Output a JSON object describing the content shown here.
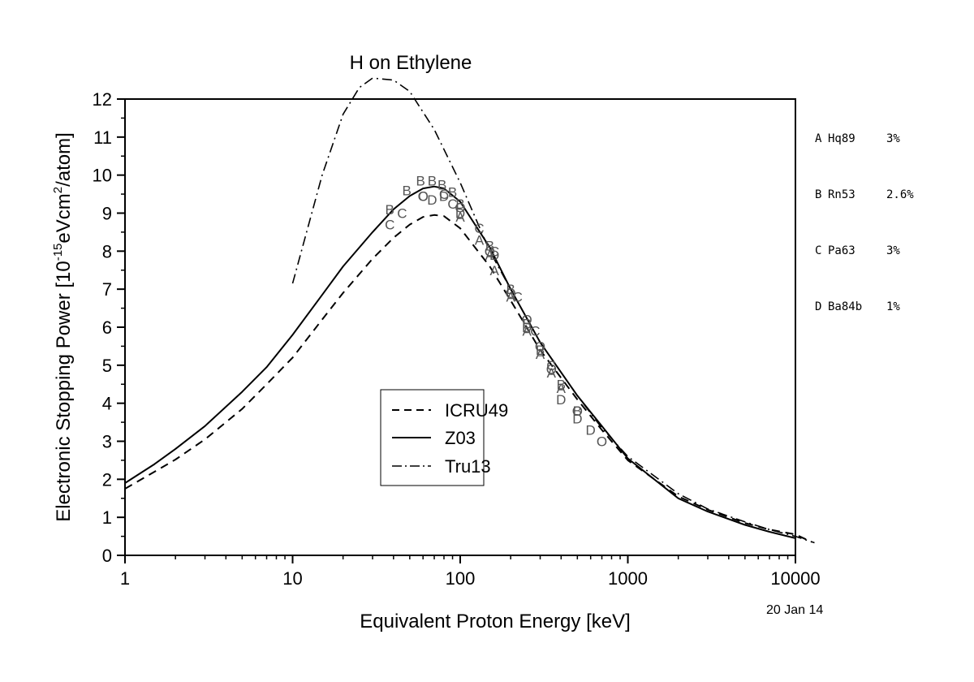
{
  "chart_data": {
    "type": "line",
    "title": "H on Ethylene",
    "xlabel": "Equivalent Proton Energy [keV]",
    "ylabel_main": "Electronic Stopping Power [10",
    "ylabel_sup1": "-15",
    "ylabel_mid": "eVcm",
    "ylabel_sup2": "2",
    "ylabel_end": "/atom]",
    "x_scale": "log",
    "xlim": [
      1,
      10000
    ],
    "ylim": [
      0,
      12
    ],
    "x_ticks": [
      "1",
      "10",
      "100",
      "1000",
      "10000"
    ],
    "y_ticks": [
      "0",
      "1",
      "2",
      "3",
      "4",
      "5",
      "6",
      "7",
      "8",
      "9",
      "10",
      "11",
      "12"
    ],
    "grid": false,
    "legend_position": "center",
    "series": [
      {
        "name": "ICRU49",
        "style": "dashed",
        "x": [
          1,
          1.5,
          2,
          3,
          5,
          7,
          10,
          15,
          20,
          30,
          40,
          50,
          60,
          70,
          80,
          100,
          150,
          200,
          300,
          500,
          700,
          1000,
          2000,
          3000,
          5000,
          7000,
          10000,
          12500
        ],
        "y": [
          1.75,
          2.2,
          2.52,
          3.05,
          3.85,
          4.5,
          5.2,
          6.2,
          6.9,
          7.8,
          8.35,
          8.7,
          8.9,
          8.95,
          8.92,
          8.6,
          7.6,
          6.7,
          5.4,
          4.1,
          3.3,
          2.5,
          1.55,
          1.2,
          0.85,
          0.68,
          0.55,
          0.35
        ]
      },
      {
        "name": "Z03",
        "style": "solid",
        "x": [
          1,
          1.5,
          2,
          3,
          5,
          7,
          10,
          15,
          20,
          30,
          40,
          50,
          60,
          70,
          80,
          100,
          150,
          200,
          300,
          500,
          700,
          1000,
          2000,
          3000,
          5000,
          7000,
          10000
        ],
        "y": [
          1.9,
          2.4,
          2.8,
          3.4,
          4.3,
          4.95,
          5.8,
          6.85,
          7.6,
          8.5,
          9.1,
          9.45,
          9.65,
          9.7,
          9.65,
          9.3,
          8.1,
          7.0,
          5.6,
          4.2,
          3.4,
          2.55,
          1.5,
          1.15,
          0.8,
          0.62,
          0.45
        ]
      },
      {
        "name": "Tru13",
        "style": "dashdot",
        "x": [
          10,
          15,
          20,
          25,
          30,
          40,
          50,
          70,
          100,
          150,
          200,
          300,
          500,
          700,
          1000,
          2000,
          3000,
          5000,
          7000,
          10000,
          13000
        ],
        "y": [
          7.15,
          10.0,
          11.6,
          12.3,
          12.55,
          12.5,
          12.2,
          11.2,
          9.8,
          8.0,
          7.0,
          5.6,
          4.2,
          3.35,
          2.6,
          1.62,
          1.22,
          0.88,
          0.68,
          0.5,
          0.33
        ]
      }
    ],
    "data_points": [
      {
        "ref": "A",
        "x": [
          100,
          130,
          150,
          160,
          200,
          250,
          300,
          350,
          400
        ],
        "y": [
          8.9,
          8.3,
          7.9,
          7.5,
          6.8,
          5.9,
          5.3,
          4.8,
          4.4
        ]
      },
      {
        "ref": "B",
        "x": [
          38,
          48,
          58,
          68,
          78,
          90,
          100,
          150,
          200,
          250,
          300,
          400,
          500
        ],
        "y": [
          9.1,
          9.6,
          9.85,
          9.85,
          9.75,
          9.55,
          9.25,
          8.15,
          7.0,
          6.1,
          5.4,
          4.5,
          3.8
        ]
      },
      {
        "ref": "C",
        "x": [
          38,
          45,
          60,
          80,
          90,
          130,
          160,
          220,
          280,
          350
        ],
        "y": [
          8.7,
          9.0,
          9.45,
          9.5,
          9.25,
          8.6,
          8.0,
          6.8,
          5.9,
          5.0
        ]
      },
      {
        "ref": "D",
        "x": [
          68,
          80,
          100,
          160,
          250,
          400,
          500,
          600
        ],
        "y": [
          9.35,
          9.45,
          9.0,
          7.9,
          6.0,
          4.1,
          3.6,
          3.3
        ]
      },
      {
        "ref": "O",
        "x": [
          60,
          100,
          150,
          200,
          250,
          300,
          350,
          500,
          700
        ],
        "y": [
          9.45,
          9.15,
          8.0,
          6.9,
          6.2,
          5.5,
          4.9,
          3.8,
          3.0
        ]
      }
    ]
  },
  "references": [
    {
      "letter": "A",
      "name": "Hq89",
      "error": "3%"
    },
    {
      "letter": "B",
      "name": "Rn53",
      "error": "2.6%"
    },
    {
      "letter": "C",
      "name": "Pa63",
      "error": "3%"
    },
    {
      "letter": "D",
      "name": "Ba84b",
      "error": "1%"
    }
  ],
  "date_stamp": "20 Jan 14"
}
